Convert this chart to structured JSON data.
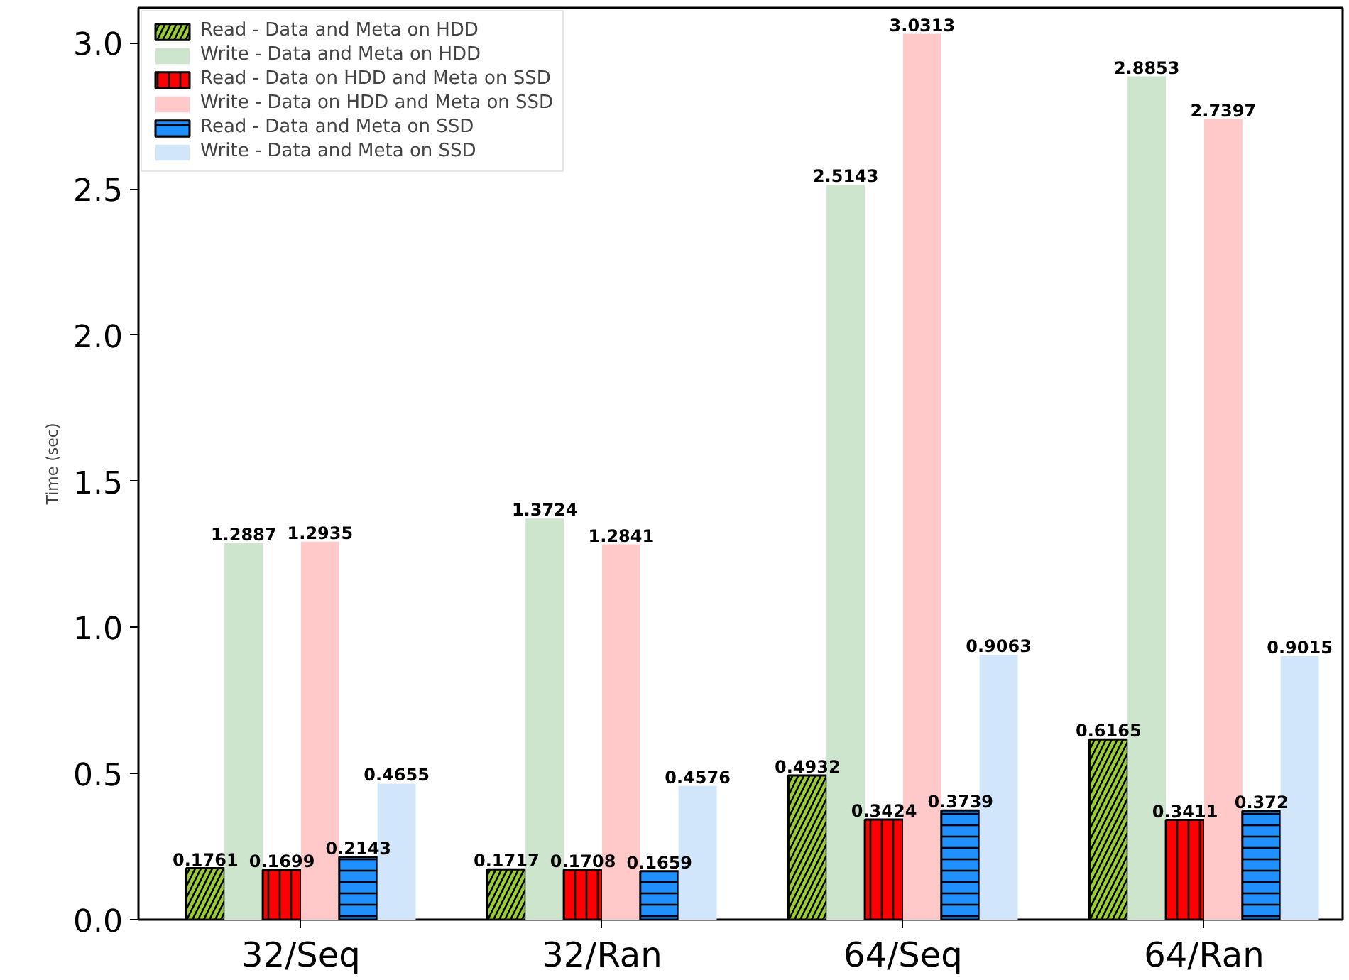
{
  "chart_data": {
    "type": "bar",
    "ylabel": "Time (sec)",
    "categories": [
      "32/Seq",
      "32/Ran",
      "64/Seq",
      "64/Ran"
    ],
    "series": [
      {
        "name": "Read - Data and Meta on HDD",
        "color": "#9acd32",
        "values": [
          0.1761,
          0.1717,
          0.4932,
          0.6165
        ]
      },
      {
        "name": "Write - Data and Meta on HDD",
        "color": "#cce5cc",
        "values": [
          1.2887,
          1.3724,
          2.5143,
          2.8853
        ]
      },
      {
        "name": "Read - Data on HDD and Meta on SSD",
        "color": "#ff0000",
        "values": [
          0.1699,
          0.1708,
          0.3424,
          0.3411
        ]
      },
      {
        "name": "Write - Data on HDD and Meta on SSD",
        "color": "#ffc9c9",
        "values": [
          1.2935,
          1.2841,
          3.0313,
          2.7397
        ]
      },
      {
        "name": "Read - Data and Meta on SSD",
        "color": "#1e90ff",
        "values": [
          0.2143,
          0.1659,
          0.3739,
          0.372
        ]
      },
      {
        "name": "Write - Data and Meta on SSD",
        "color": "#d2e6fb",
        "values": [
          0.4655,
          0.4576,
          0.9063,
          0.9015
        ]
      }
    ],
    "ylim": [
      0,
      3.12
    ],
    "yticks": [
      {
        "value": 0,
        "label": "0.0"
      },
      {
        "value": 0.5,
        "label": "0.5"
      },
      {
        "value": 1,
        "label": "1.0"
      },
      {
        "value": 1.5,
        "label": "1.5"
      },
      {
        "value": 2,
        "label": "2.0"
      },
      {
        "value": 2.5,
        "label": "2.5"
      },
      {
        "value": 3,
        "label": "3.0"
      }
    ],
    "data_labels": true,
    "grid": false,
    "legend": "top left"
  }
}
